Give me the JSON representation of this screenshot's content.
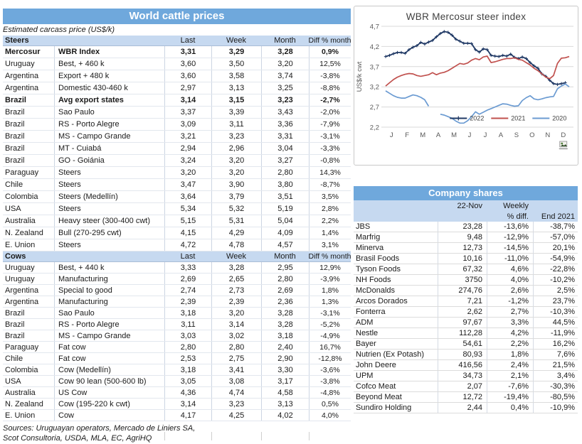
{
  "colors": {
    "title_bar_blue": "#6fa8dc",
    "header_light_blue": "#c6d9f0",
    "series_2022_navy": "#1f3864",
    "series_2021_red": "#c0504d",
    "series_2020_blue": "#6b9bd2",
    "gridline_gray": "#d9d9d9"
  },
  "left_table": {
    "title": "World cattle prices",
    "subtitle": "Estimated carcass price (US$/k)",
    "columns": [
      "Last",
      "Week",
      "Month",
      "Diff % month"
    ],
    "sections": [
      {
        "label": "Steers",
        "rows": [
          {
            "country": "Mercosur",
            "desc": "WBR Index",
            "last": "3,31",
            "week": "3,29",
            "month": "3,28",
            "diff": "0,9%",
            "bold": true
          },
          {
            "country": "Uruguay",
            "desc": "Best, + 460 k",
            "last": "3,60",
            "week": "3,50",
            "month": "3,20",
            "diff": "12,5%",
            "bold": false
          },
          {
            "country": "Argentina",
            "desc": "Export + 480 k",
            "last": "3,60",
            "week": "3,58",
            "month": "3,74",
            "diff": "-3,8%",
            "bold": false
          },
          {
            "country": "Argentina",
            "desc": "Domestic 430-460 k",
            "last": "2,97",
            "week": "3,13",
            "month": "3,25",
            "diff": "-8,8%",
            "bold": false
          },
          {
            "country": "Brazil",
            "desc": "Avg export states",
            "last": "3,14",
            "week": "3,15",
            "month": "3,23",
            "diff": "-2,7%",
            "bold": true
          },
          {
            "country": "Brazil",
            "desc": "Sao Paulo",
            "last": "3,37",
            "week": "3,39",
            "month": "3,43",
            "diff": "-2,0%",
            "bold": false
          },
          {
            "country": "Brazil",
            "desc": "RS - Porto Alegre",
            "last": "3,09",
            "week": "3,11",
            "month": "3,36",
            "diff": "-7,9%",
            "bold": false
          },
          {
            "country": "Brazil",
            "desc": "MS - Campo Grande",
            "last": "3,21",
            "week": "3,23",
            "month": "3,31",
            "diff": "-3,1%",
            "bold": false
          },
          {
            "country": "Brazil",
            "desc": "MT - Cuiabá",
            "last": "2,94",
            "week": "2,96",
            "month": "3,04",
            "diff": "-3,3%",
            "bold": false
          },
          {
            "country": "Brazil",
            "desc": "GO - Goiánia",
            "last": "3,24",
            "week": "3,20",
            "month": "3,27",
            "diff": "-0,8%",
            "bold": false
          },
          {
            "country": "Paraguay",
            "desc": "Steers",
            "last": "3,20",
            "week": "3,20",
            "month": "2,80",
            "diff": "14,3%",
            "bold": false
          },
          {
            "country": "Chile",
            "desc": "Steers",
            "last": "3,47",
            "week": "3,90",
            "month": "3,80",
            "diff": "-8,7%",
            "bold": false
          },
          {
            "country": "Colombia",
            "desc": "Steers (Medellín)",
            "last": "3,64",
            "week": "3,79",
            "month": "3,51",
            "diff": "3,5%",
            "bold": false
          },
          {
            "country": "USA",
            "desc": "Steers",
            "last": "5,34",
            "week": "5,32",
            "month": "5,19",
            "diff": "2,8%",
            "bold": false
          },
          {
            "country": "Australia",
            "desc": "Heavy steer (300-400 cwt)",
            "last": "5,15",
            "week": "5,31",
            "month": "5,04",
            "diff": "2,2%",
            "bold": false
          },
          {
            "country": "N. Zealand",
            "desc": "Bull (270-295 cwt)",
            "last": "4,15",
            "week": "4,29",
            "month": "4,09",
            "diff": "1,4%",
            "bold": false
          },
          {
            "country": "E. Union",
            "desc": "Steers",
            "last": "4,72",
            "week": "4,78",
            "month": "4,57",
            "diff": "3,1%",
            "bold": false
          }
        ]
      },
      {
        "label": "Cows",
        "rows": [
          {
            "country": "Uruguay",
            "desc": "Best, + 440 k",
            "last": "3,33",
            "week": "3,28",
            "month": "2,95",
            "diff": "12,9%",
            "bold": false
          },
          {
            "country": "Uruguay",
            "desc": "Manufacturing",
            "last": "2,69",
            "week": "2,65",
            "month": "2,80",
            "diff": "-3,9%",
            "bold": false
          },
          {
            "country": "Argentina",
            "desc": "Special to good",
            "last": "2,74",
            "week": "2,73",
            "month": "2,69",
            "diff": "1,8%",
            "bold": false
          },
          {
            "country": "Argentina",
            "desc": "Manufacturing",
            "last": "2,39",
            "week": "2,39",
            "month": "2,36",
            "diff": "1,3%",
            "bold": false
          },
          {
            "country": "Brazil",
            "desc": "Sao Paulo",
            "last": "3,18",
            "week": "3,20",
            "month": "3,28",
            "diff": "-3,1%",
            "bold": false
          },
          {
            "country": "Brazil",
            "desc": "RS - Porto Alegre",
            "last": "3,11",
            "week": "3,14",
            "month": "3,28",
            "diff": "-5,2%",
            "bold": false
          },
          {
            "country": "Brazil",
            "desc": "MS - Campo Grande",
            "last": "3,03",
            "week": "3,02",
            "month": "3,18",
            "diff": "-4,9%",
            "bold": false
          },
          {
            "country": "Paraguay",
            "desc": "Fat cow",
            "last": "2,80",
            "week": "2,80",
            "month": "2,40",
            "diff": "16,7%",
            "bold": false
          },
          {
            "country": "Chile",
            "desc": "Fat cow",
            "last": "2,53",
            "week": "2,75",
            "month": "2,90",
            "diff": "-12,8%",
            "bold": false
          },
          {
            "country": "Colombia",
            "desc": "Cow (Medellín)",
            "last": "3,18",
            "week": "3,41",
            "month": "3,30",
            "diff": "-3,6%",
            "bold": false
          },
          {
            "country": "USA",
            "desc": "Cow 90 lean (500-600 lb)",
            "last": "3,05",
            "week": "3,08",
            "month": "3,17",
            "diff": "-3,8%",
            "bold": false
          },
          {
            "country": "Australia",
            "desc": "US Cow",
            "last": "4,36",
            "week": "4,74",
            "month": "4,58",
            "diff": "-4,8%",
            "bold": false
          },
          {
            "country": "N. Zealand",
            "desc": "Cow (195-220 k cwt)",
            "last": "3,14",
            "week": "3,23",
            "month": "3,13",
            "diff": "0,5%",
            "bold": false
          },
          {
            "country": "E. Union",
            "desc": "Cow",
            "last": "4,17",
            "week": "4,25",
            "month": "4,02",
            "diff": "4,0%",
            "bold": false
          }
        ]
      }
    ],
    "sources_line1": "Sources: Uruguayan operators, Mercado de Liniers SA,",
    "sources_line2": "Scot Consultoria, USDA, MLA, EC, AgriHQ"
  },
  "chart_data": {
    "type": "line",
    "title": "WBR Mercosur steer index",
    "xlabel": "",
    "ylabel": "US$/k cwt",
    "ylim": [
      2.2,
      4.7
    ],
    "yticks": [
      2.2,
      2.7,
      3.2,
      3.7,
      4.2,
      4.7
    ],
    "grid": true,
    "legend_position": "inside-bottom-right",
    "x_months": [
      "J",
      "F",
      "M",
      "A",
      "M",
      "J",
      "J",
      "A",
      "S",
      "O",
      "N",
      "D"
    ],
    "points_per_month": 4,
    "series": [
      {
        "name": "2022",
        "color": "#1f3864",
        "marker": "plus",
        "values": [
          3.95,
          3.98,
          4.02,
          4.05,
          4.05,
          4.03,
          4.12,
          4.18,
          4.22,
          4.3,
          4.26,
          4.31,
          4.35,
          4.44,
          4.52,
          4.57,
          4.55,
          4.48,
          4.38,
          4.33,
          4.28,
          4.28,
          4.27,
          4.12,
          4.06,
          4.14,
          4.12,
          3.98,
          3.96,
          3.95,
          3.98,
          3.96,
          4.01,
          3.93,
          3.9,
          3.94,
          3.9,
          3.8,
          3.72,
          3.66,
          3.52,
          3.46,
          3.36,
          3.28,
          3.26,
          3.28,
          3.3
        ]
      },
      {
        "name": "2021",
        "color": "#c0504d",
        "marker": "none",
        "values": [
          3.22,
          3.3,
          3.38,
          3.44,
          3.48,
          3.51,
          3.53,
          3.52,
          3.48,
          3.46,
          3.48,
          3.5,
          3.55,
          3.5,
          3.54,
          3.56,
          3.6,
          3.66,
          3.72,
          3.78,
          3.76,
          3.79,
          3.86,
          3.9,
          3.87,
          3.94,
          3.96,
          3.8,
          3.82,
          3.85,
          3.88,
          3.9,
          3.9,
          3.92,
          3.88,
          3.86,
          3.8,
          3.74,
          3.66,
          3.6,
          3.52,
          3.44,
          3.4,
          3.48,
          3.78,
          3.91,
          3.92,
          3.95
        ]
      },
      {
        "name": "2020",
        "color": "#6b9bd2",
        "marker": "none",
        "values": [
          3.1,
          3.04,
          2.98,
          2.94,
          2.92,
          2.92,
          2.96,
          3.0,
          2.98,
          2.94,
          2.88,
          2.72,
          null,
          null,
          2.52,
          2.5,
          2.46,
          2.42,
          2.35,
          2.3,
          2.3,
          2.36,
          2.46,
          2.58,
          2.52,
          2.57,
          2.62,
          2.66,
          2.7,
          2.74,
          2.78,
          2.77,
          2.74,
          2.72,
          2.73,
          2.86,
          2.93,
          2.98,
          2.9,
          2.88,
          2.9,
          2.93,
          2.95,
          2.96,
          3.15,
          3.22,
          3.27,
          3.2
        ]
      }
    ]
  },
  "shares_table": {
    "title": "Company shares",
    "header": {
      "date": "22-Nov",
      "weekly_line1": "Weekly",
      "weekly_line2": "% diff.",
      "end": "End 2021"
    },
    "rows": [
      {
        "name": "JBS",
        "price": "23,28",
        "weekly": "-13,6%",
        "end": "-38,7%"
      },
      {
        "name": "Marfrig",
        "price": "9,48",
        "weekly": "-12,9%",
        "end": "-57,0%"
      },
      {
        "name": "Minerva",
        "price": "12,73",
        "weekly": "-14,5%",
        "end": "20,1%"
      },
      {
        "name": "Brasil Foods",
        "price": "10,16",
        "weekly": "-11,0%",
        "end": "-54,9%"
      },
      {
        "name": "Tyson Foods",
        "price": "67,32",
        "weekly": "4,6%",
        "end": "-22,8%"
      },
      {
        "name": "NH Foods",
        "price": "3750",
        "weekly": "4,0%",
        "end": "-10,2%"
      },
      {
        "name": "McDonalds",
        "price": "274,76",
        "weekly": "2,6%",
        "end": "2,5%"
      },
      {
        "name": "Arcos Dorados",
        "price": "7,21",
        "weekly": "-1,2%",
        "end": "23,7%"
      },
      {
        "name": "Fonterra",
        "price": "2,62",
        "weekly": "2,7%",
        "end": "-10,3%"
      },
      {
        "name": "ADM",
        "price": "97,67",
        "weekly": "3,3%",
        "end": "44,5%"
      },
      {
        "name": "Nestle",
        "price": "112,28",
        "weekly": "4,2%",
        "end": "-11,9%"
      },
      {
        "name": "Bayer",
        "price": "54,61",
        "weekly": "2,2%",
        "end": "16,2%"
      },
      {
        "name": "Nutrien (Ex Potash)",
        "price": "80,93",
        "weekly": "1,8%",
        "end": "7,6%"
      },
      {
        "name": "John Deere",
        "price": "416,56",
        "weekly": "2,4%",
        "end": "21,5%"
      },
      {
        "name": "UPM",
        "price": "34,73",
        "weekly": "2,1%",
        "end": "3,4%"
      },
      {
        "name": "Cofco Meat",
        "price": "2,07",
        "weekly": "-7,6%",
        "end": "-30,3%"
      },
      {
        "name": "Beyond Meat",
        "price": "12,72",
        "weekly": "-19,4%",
        "end": "-80,5%"
      },
      {
        "name": "Sundiro Holding",
        "price": "2,44",
        "weekly": "0,4%",
        "end": "-10,9%"
      }
    ]
  }
}
